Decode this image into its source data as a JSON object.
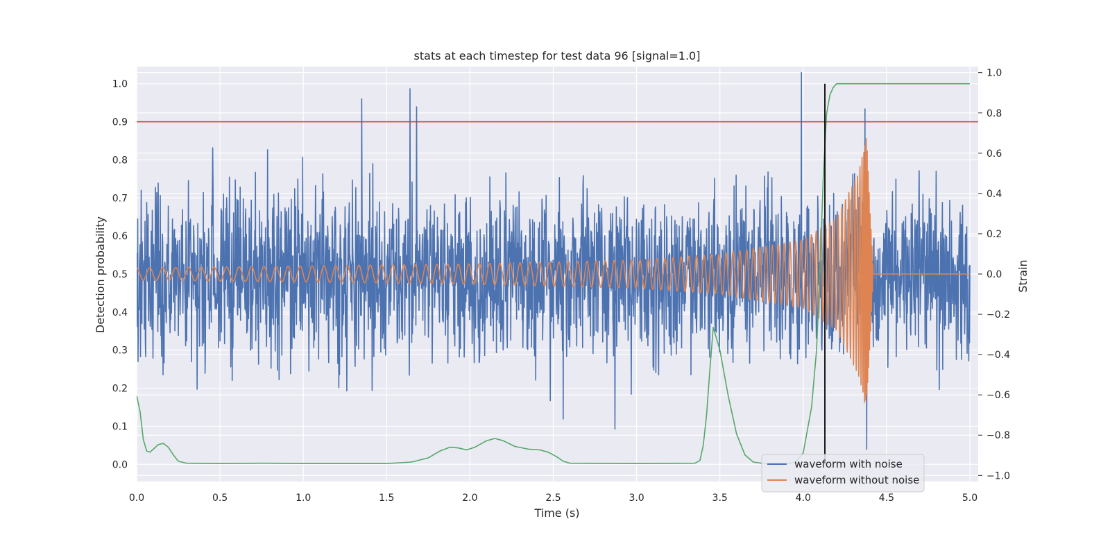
{
  "chart_data": {
    "type": "line",
    "title": "stats at each timestep for test data 96 [signal=1.0]",
    "xlabel": "Time (s)",
    "ylabel": "Detection probability",
    "y2label": "Strain",
    "xlim": [
      0.0,
      5.05
    ],
    "ylim": [
      -0.045,
      1.045
    ],
    "y2lim": [
      -1.03,
      1.03
    ],
    "xticks": [
      "0.0",
      "0.5",
      "1.0",
      "1.5",
      "2.0",
      "2.5",
      "3.0",
      "3.5",
      "4.0",
      "4.5",
      "5.0"
    ],
    "yticks": [
      "0.0",
      "0.1",
      "0.2",
      "0.3",
      "0.4",
      "0.5",
      "0.6",
      "0.7",
      "0.8",
      "0.9",
      "1.0"
    ],
    "y2ticks": [
      "−1.0",
      "−0.8",
      "−0.6",
      "−0.4",
      "−0.2",
      "0.0",
      "0.2",
      "0.4",
      "0.6",
      "0.8",
      "1.0"
    ],
    "grid": true,
    "legend_position": "lower-right",
    "threshold": {
      "y": 0.9,
      "color": "#c03d3e"
    },
    "event_marker": {
      "x": 4.13,
      "color": "#000000"
    },
    "series": [
      {
        "name": "waveform with noise",
        "axis": "right",
        "color": "#4c72b0",
        "kind": "noise",
        "samples": 2400,
        "center": 0.0,
        "typical_amplitude": 0.38,
        "peak_spikes": [
          {
            "x": 1.35,
            "y": 0.87
          },
          {
            "x": 1.64,
            "y": 0.92
          },
          {
            "x": 1.68,
            "y": 0.83
          },
          {
            "x": 3.99,
            "y": 1.0
          },
          {
            "x": 4.37,
            "y": 0.82
          },
          {
            "x": 1.26,
            "y": -0.58
          },
          {
            "x": 2.56,
            "y": -0.72
          },
          {
            "x": 2.87,
            "y": -0.77
          },
          {
            "x": 4.38,
            "y": -0.87
          }
        ]
      },
      {
        "name": "waveform without noise",
        "axis": "right",
        "color": "#dd8452",
        "kind": "chirp",
        "merger_time": 4.38,
        "envelope": [
          {
            "t": 0.0,
            "a": 0.03
          },
          {
            "t": 2.0,
            "a": 0.05
          },
          {
            "t": 3.0,
            "a": 0.07
          },
          {
            "t": 3.5,
            "a": 0.1
          },
          {
            "t": 4.0,
            "a": 0.17
          },
          {
            "t": 4.2,
            "a": 0.28
          },
          {
            "t": 4.33,
            "a": 0.5
          },
          {
            "t": 4.38,
            "a": 0.68
          },
          {
            "t": 4.42,
            "a": 0.02
          }
        ]
      },
      {
        "axis": "left",
        "color": "#55a868",
        "kind": "curve",
        "x": [
          0.0,
          0.02,
          0.04,
          0.06,
          0.08,
          0.1,
          0.13,
          0.16,
          0.19,
          0.22,
          0.25,
          0.3,
          0.5,
          0.75,
          1.0,
          1.5,
          1.65,
          1.75,
          1.82,
          1.88,
          1.93,
          1.98,
          2.03,
          2.1,
          2.15,
          2.2,
          2.27,
          2.35,
          2.42,
          2.47,
          2.52,
          2.56,
          2.6,
          3.0,
          3.35,
          3.38,
          3.4,
          3.42,
          3.44,
          3.46,
          3.5,
          3.55,
          3.6,
          3.65,
          3.7,
          3.75,
          3.8,
          3.9,
          3.95,
          4.0,
          4.05,
          4.08,
          4.1,
          4.12,
          4.14,
          4.16,
          4.18,
          4.2,
          4.25,
          4.5,
          5.0
        ],
        "y": [
          0.18,
          0.14,
          0.065,
          0.035,
          0.032,
          0.04,
          0.052,
          0.055,
          0.045,
          0.025,
          0.008,
          0.003,
          0.002,
          0.003,
          0.002,
          0.002,
          0.006,
          0.017,
          0.035,
          0.045,
          0.043,
          0.038,
          0.045,
          0.062,
          0.068,
          0.062,
          0.047,
          0.04,
          0.038,
          0.032,
          0.02,
          0.008,
          0.003,
          0.002,
          0.003,
          0.01,
          0.05,
          0.13,
          0.25,
          0.36,
          0.3,
          0.18,
          0.08,
          0.025,
          0.006,
          0.003,
          0.002,
          0.002,
          0.004,
          0.03,
          0.15,
          0.3,
          0.5,
          0.75,
          0.92,
          0.97,
          0.99,
          1.0,
          1.0,
          1.0,
          1.0
        ]
      }
    ]
  }
}
